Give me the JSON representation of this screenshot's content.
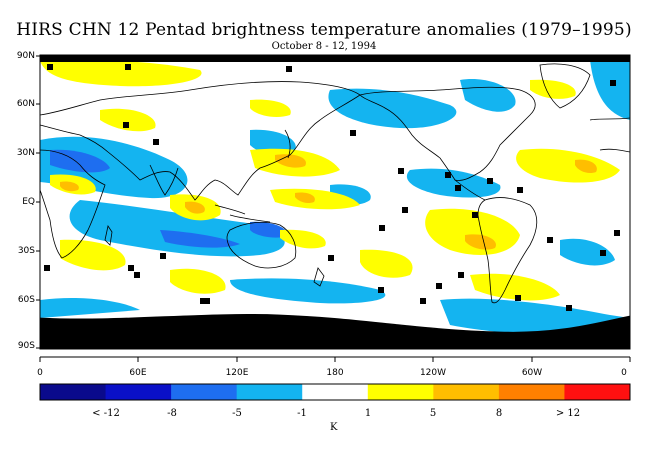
{
  "title": "HIRS CHN 12 Pentad brightness temperature anomalies (1979–1995)",
  "subtitle": "October 8 - 12, 1994",
  "y_ticks": [
    "90N",
    "60N",
    "30N",
    "EQ",
    "30S",
    "60S",
    "90S"
  ],
  "x_ticks": [
    "0",
    "60E",
    "120E",
    "180",
    "120W",
    "60W",
    "0"
  ],
  "colorbar": {
    "colors": [
      "#0a0a8c",
      "#0a10c8",
      "#1e6ef0",
      "#14b4f0",
      "#ffffff",
      "#ffff00",
      "#ffbe00",
      "#ff8000",
      "#ff1010"
    ],
    "labels": [
      "< -12",
      "-8",
      "-5",
      "-1",
      "1",
      "5",
      "8",
      "> 12"
    ],
    "unit": "K"
  },
  "colors": {
    "land_outline": "#000000",
    "missing": "#000000",
    "positive_anomaly": "#ffff00",
    "strong_positive": "#ffbe00",
    "negative_anomaly": "#14b4f0",
    "strong_negative": "#1e6ef0"
  }
}
